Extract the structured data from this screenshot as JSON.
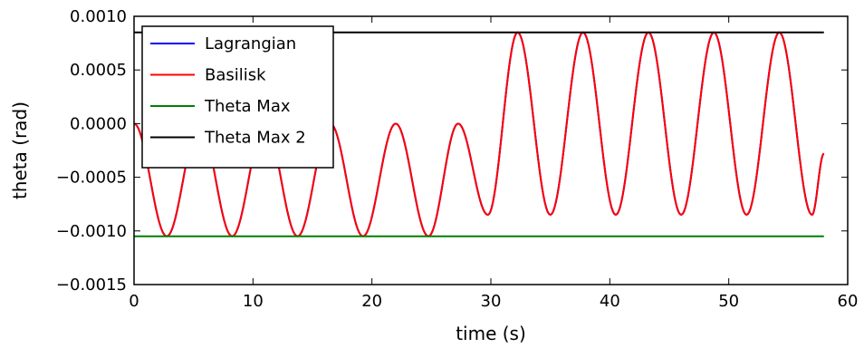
{
  "chart_data": {
    "type": "line",
    "xlabel": "time (s)",
    "ylabel": "theta (rad)",
    "xlim": [
      0,
      60
    ],
    "ylim": [
      -0.0015,
      0.001
    ],
    "xticks": [
      0,
      10,
      20,
      30,
      40,
      50,
      60
    ],
    "xtick_labels": [
      "0",
      "10",
      "20",
      "30",
      "40",
      "50",
      "60"
    ],
    "yticks": [
      -0.0015,
      -0.001,
      -0.0005,
      0.0,
      0.0005,
      0.001
    ],
    "ytick_labels": [
      "−0.0015",
      "−0.0010",
      "−0.0005",
      "0.0000",
      "0.0005",
      "0.0010"
    ],
    "grid": false,
    "legend_position": "top-left",
    "series": [
      {
        "name": "Lagrangian",
        "color": "#0000ff",
        "x": [
          0,
          2.75,
          5.5,
          8.25,
          11.0,
          13.75,
          16.5,
          19.25,
          22.0,
          24.75,
          27.25,
          29.75,
          32.25,
          35.0,
          37.75,
          40.5,
          43.25,
          46.0,
          48.75,
          51.5,
          54.25,
          57.0,
          58.0
        ],
        "y": [
          0.0,
          -0.00105,
          0.0,
          -0.00105,
          0.0,
          -0.00105,
          0.0,
          -0.00105,
          0.0,
          -0.00105,
          0.0,
          -0.00085,
          0.00085,
          -0.00085,
          0.00085,
          -0.00085,
          0.00085,
          -0.00085,
          0.00085,
          -0.00085,
          0.00085,
          -0.00085,
          -0.00028
        ]
      },
      {
        "name": "Basilisk",
        "color": "#ff0000",
        "x": [
          0,
          2.75,
          5.5,
          8.25,
          11.0,
          13.75,
          16.5,
          19.25,
          22.0,
          24.75,
          27.25,
          29.75,
          32.25,
          35.0,
          37.75,
          40.5,
          43.25,
          46.0,
          48.75,
          51.5,
          54.25,
          57.0,
          58.0
        ],
        "y": [
          0.0,
          -0.00105,
          0.0,
          -0.00105,
          0.0,
          -0.00105,
          0.0,
          -0.00105,
          0.0,
          -0.00105,
          0.0,
          -0.00085,
          0.00085,
          -0.00085,
          0.00085,
          -0.00085,
          0.00085,
          -0.00085,
          0.00085,
          -0.00085,
          0.00085,
          -0.00085,
          -0.00028
        ]
      },
      {
        "name": "Theta Max",
        "color": "#008000",
        "x": [
          0,
          58
        ],
        "y": [
          -0.00105,
          -0.00105
        ]
      },
      {
        "name": "Theta Max 2",
        "color": "#000000",
        "x": [
          0,
          58
        ],
        "y": [
          0.00085,
          0.00085
        ]
      }
    ]
  }
}
